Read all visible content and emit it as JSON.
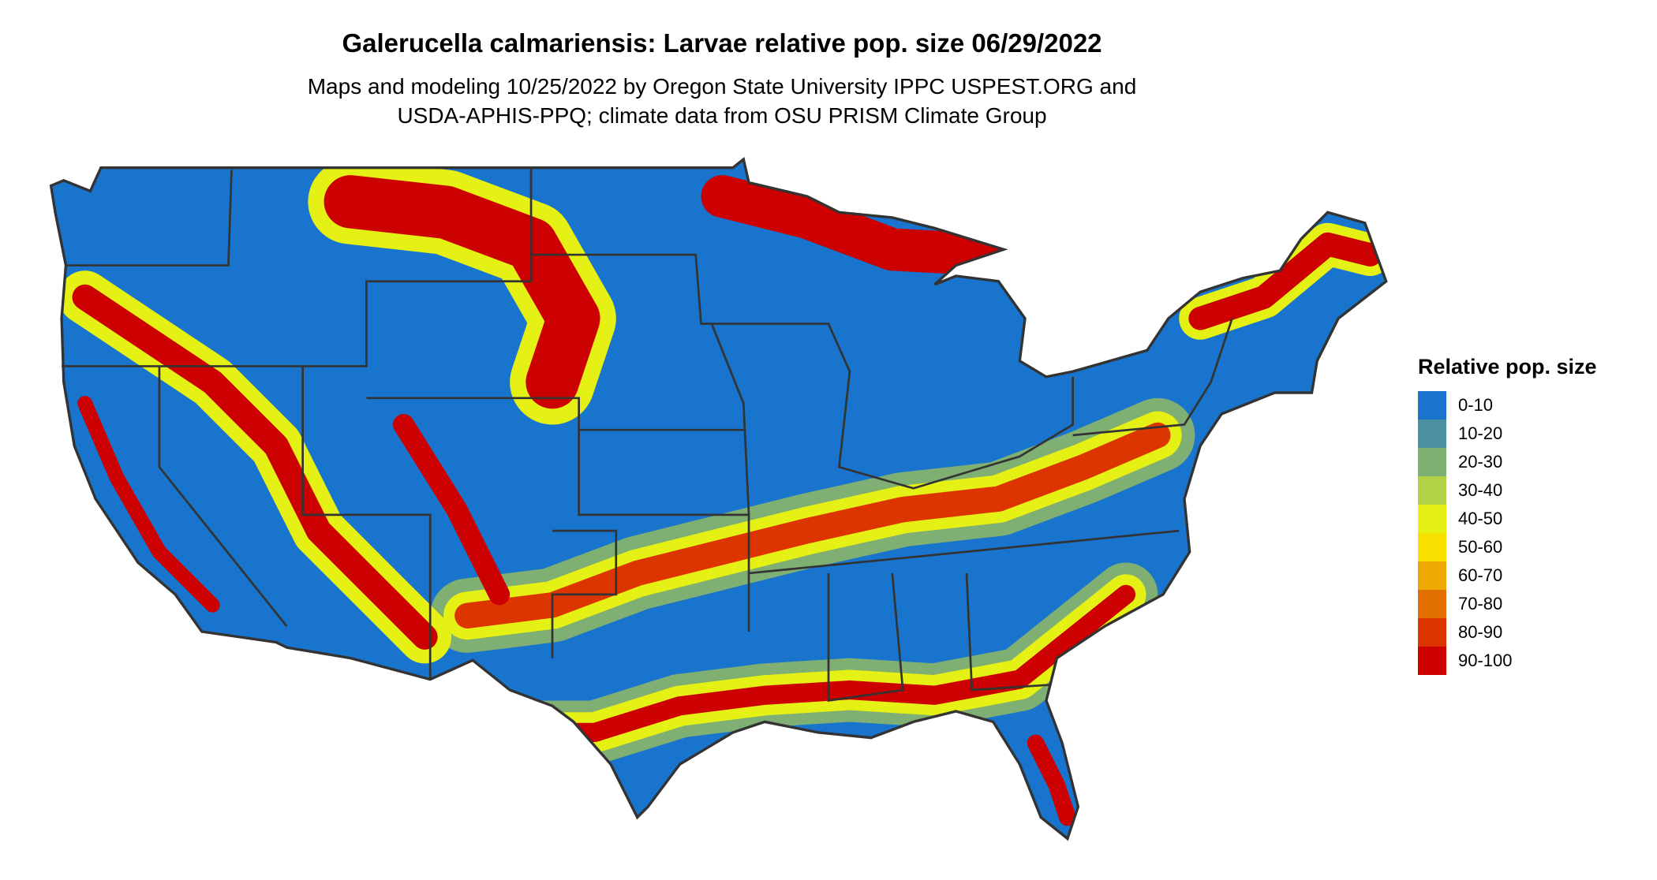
{
  "title": "Galerucella calmariensis: Larvae relative pop. size 06/29/2022",
  "subtitle_line1": "Maps and modeling 10/25/2022 by Oregon State University IPPC USPEST.ORG and",
  "subtitle_line2": "USDA-APHIS-PPQ; climate data from OSU PRISM Climate Group",
  "legend": {
    "title": "Relative pop. size",
    "items": [
      {
        "label": "0-10",
        "color": "#1874CD"
      },
      {
        "label": "10-20",
        "color": "#4A90A0"
      },
      {
        "label": "20-30",
        "color": "#7FAF72"
      },
      {
        "label": "30-40",
        "color": "#B2D146"
      },
      {
        "label": "40-50",
        "color": "#E5F015"
      },
      {
        "label": "50-60",
        "color": "#F8E000"
      },
      {
        "label": "60-70",
        "color": "#EEAA00"
      },
      {
        "label": "70-80",
        "color": "#E27000"
      },
      {
        "label": "80-90",
        "color": "#DC3500"
      },
      {
        "label": "90-100",
        "color": "#CC0000"
      }
    ]
  },
  "map": {
    "region": "contiguous United States",
    "border_color": "#333333"
  }
}
